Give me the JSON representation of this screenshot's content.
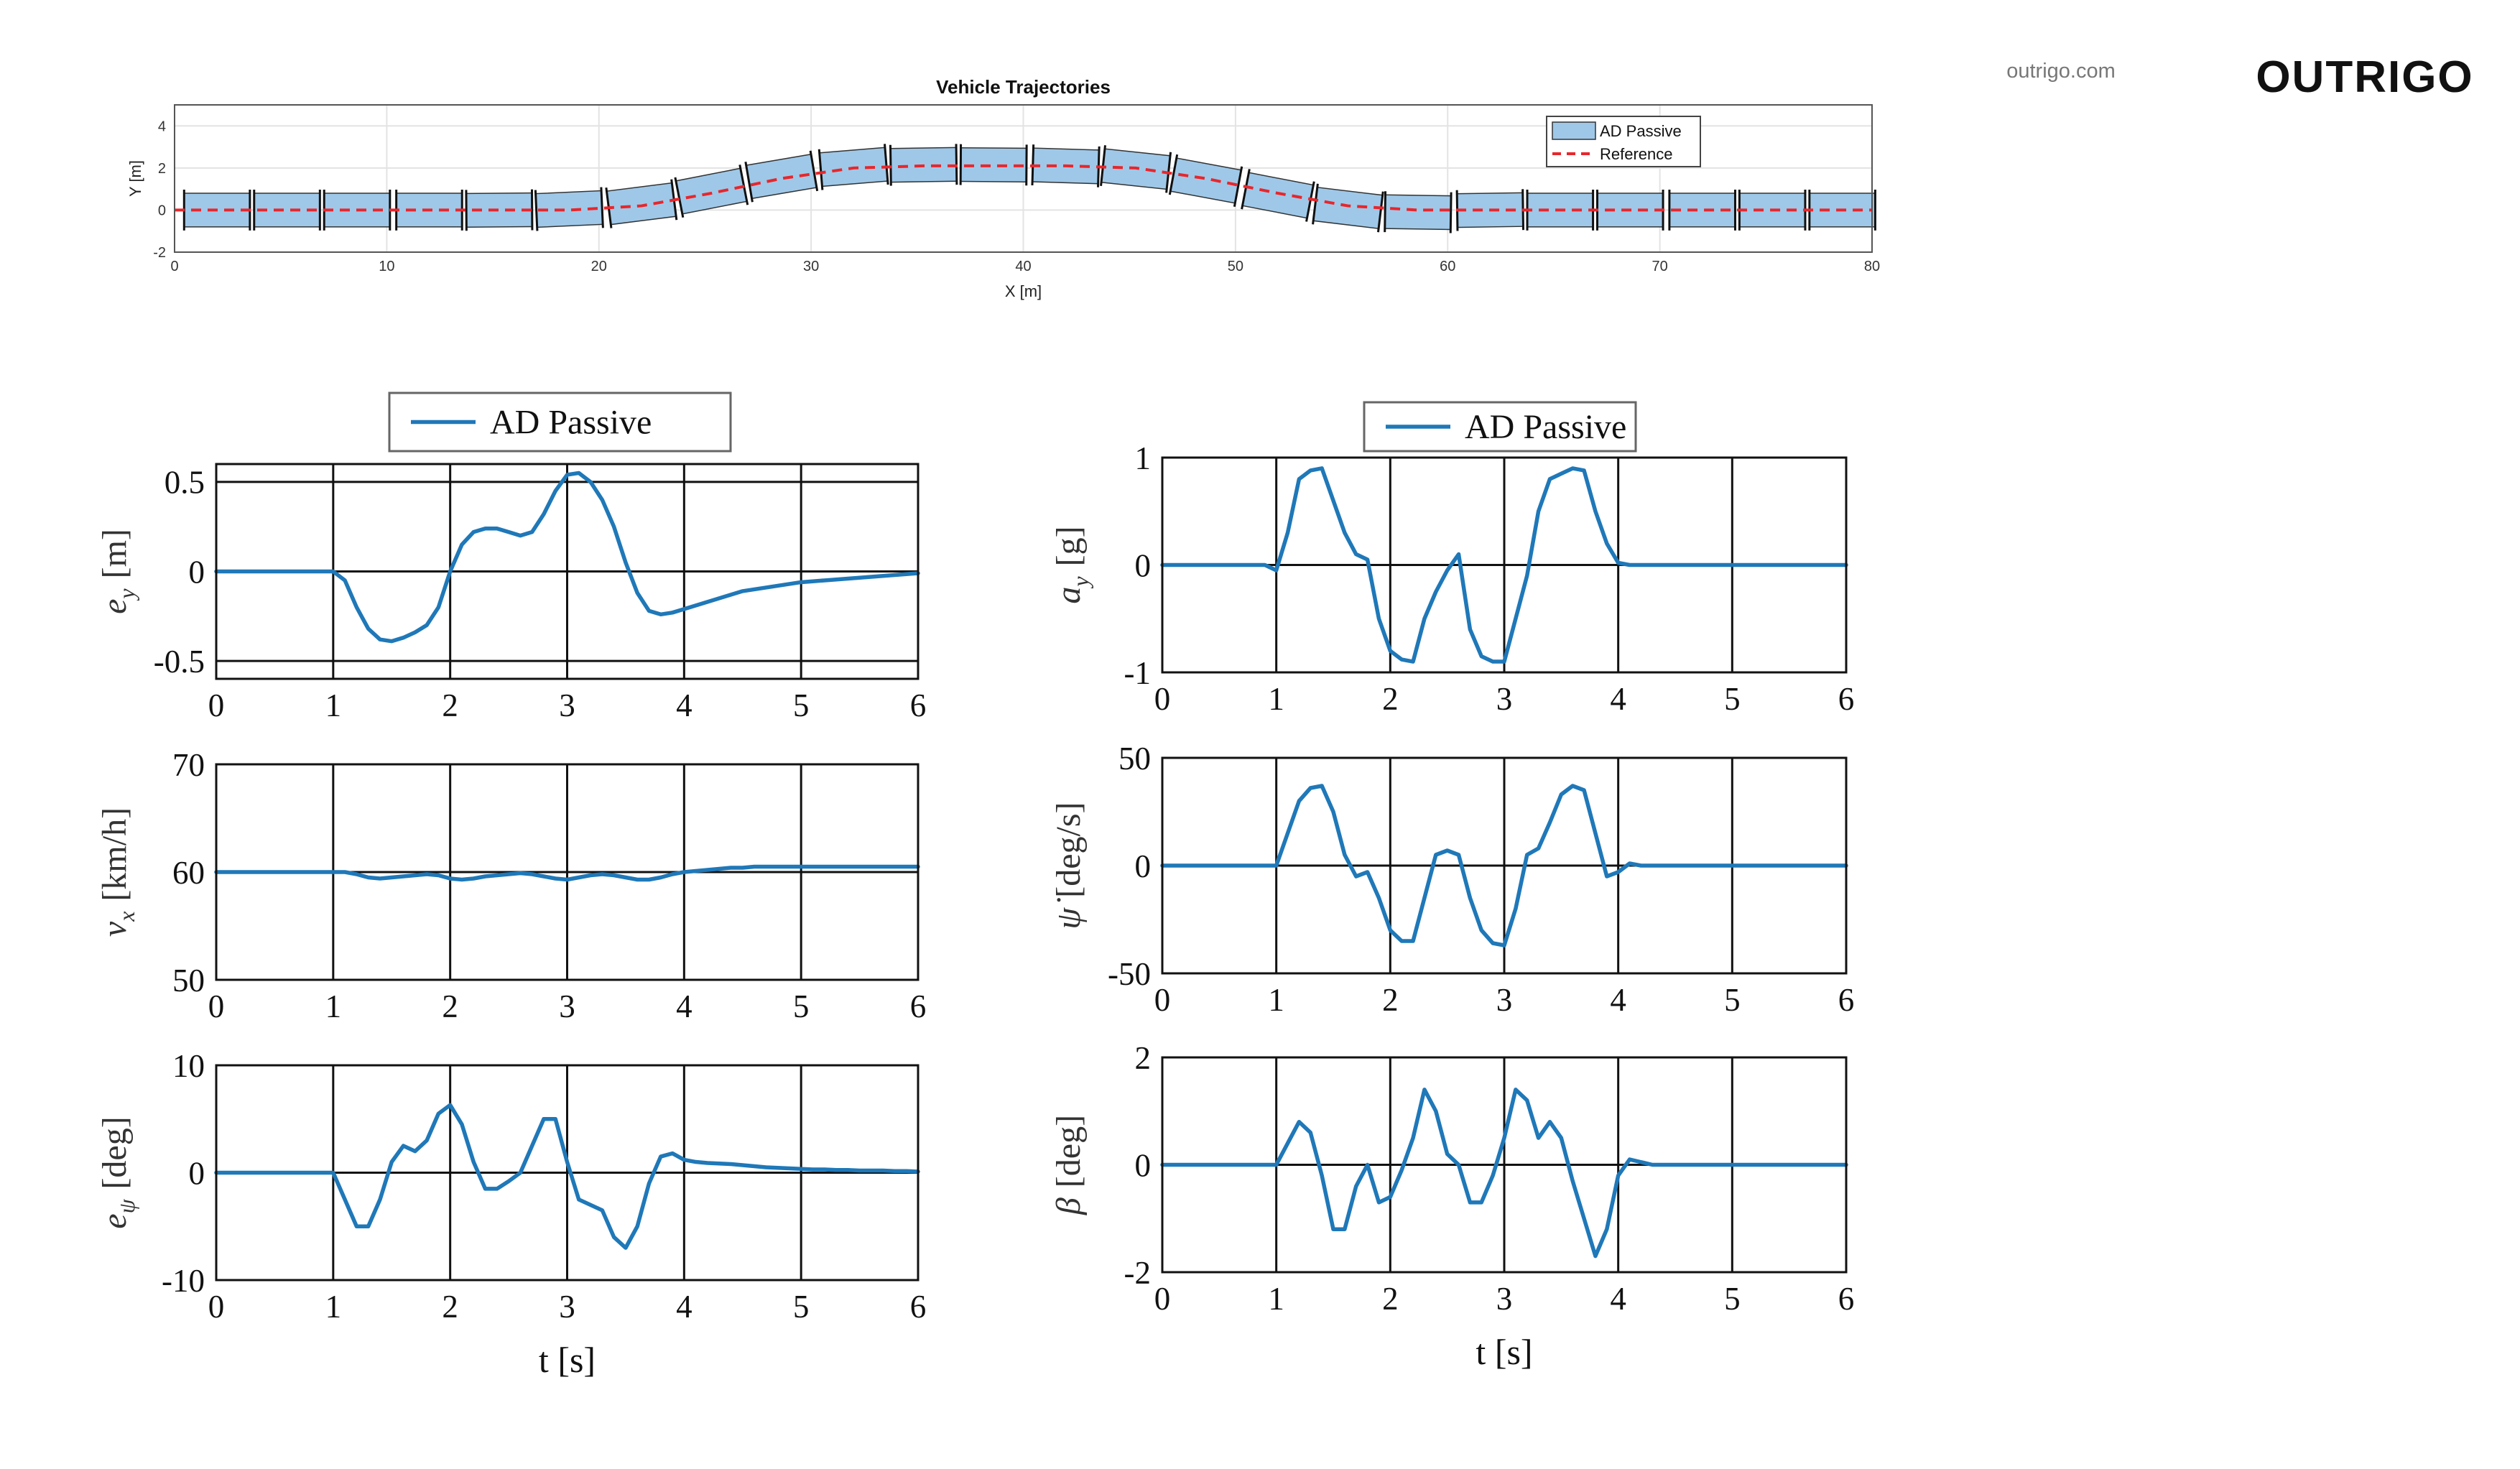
{
  "header": {
    "site": "outrigo.com",
    "logo": "OUTRIGO"
  },
  "chart_data": [
    {
      "type": "trajectory",
      "title": "Vehicle Trajectories",
      "x_label": "X [m]",
      "y_label": "Y [m]",
      "x": [
        0,
        2,
        5.3,
        8.6,
        12,
        15.3,
        18.6,
        22,
        25.3,
        28.6,
        32,
        35.3,
        38.6,
        42,
        45.3,
        48.6,
        52,
        55.3,
        58.6,
        62,
        65.3,
        68.6,
        72,
        75.3,
        78.6,
        80
      ],
      "xlim": [
        0,
        80
      ],
      "xticks": [
        0,
        10,
        20,
        30,
        40,
        50,
        60,
        70,
        80
      ],
      "ylim": [
        -2,
        5
      ],
      "yticks": [
        -2,
        0,
        2,
        4
      ],
      "grid": true,
      "legend": "upper right",
      "series": [
        {
          "name": "AD Passive",
          "color": "#9fc8e8",
          "values": [
            null,
            0,
            0,
            0,
            0,
            0,
            0.05,
            0.3,
            0.9,
            1.6,
            2.05,
            2.15,
            2.15,
            2.1,
            1.95,
            1.4,
            0.7,
            0.1,
            -0.1,
            0,
            0,
            0,
            0,
            0,
            0,
            null
          ]
        },
        {
          "name": "Reference",
          "color": "#e8262b",
          "dashed": true,
          "values": [
            0,
            0,
            0,
            0,
            0,
            0,
            0,
            0.2,
            0.8,
            1.5,
            2,
            2.1,
            2.1,
            2.1,
            2,
            1.5,
            0.8,
            0.2,
            0,
            0,
            0,
            0,
            0,
            0,
            0,
            0
          ]
        }
      ]
    },
    {
      "type": "line",
      "y_label": {
        "symbol": "e",
        "sub": "y",
        "unit": "[m]"
      },
      "x": [
        0,
        0.1,
        0.2,
        0.3,
        0.4,
        0.5,
        0.6,
        0.7,
        0.8,
        0.9,
        1,
        1.1,
        1.2,
        1.3,
        1.4,
        1.5,
        1.6,
        1.7,
        1.8,
        1.9,
        2,
        2.1,
        2.2,
        2.3,
        2.4,
        2.5,
        2.6,
        2.7,
        2.8,
        2.9,
        3,
        3.1,
        3.2,
        3.3,
        3.4,
        3.5,
        3.6,
        3.7,
        3.8,
        3.9,
        4,
        4.1,
        4.2,
        4.3,
        4.4,
        4.5,
        4.6,
        4.7,
        4.8,
        4.9,
        5,
        5.1,
        5.2,
        5.3,
        5.4,
        5.5,
        5.6,
        5.7,
        5.8,
        5.9,
        6
      ],
      "xlim": [
        0,
        6
      ],
      "xticks": [
        0,
        1,
        2,
        3,
        4,
        5,
        6
      ],
      "ylim": [
        -0.6,
        0.6
      ],
      "yticks": [
        -0.5,
        0,
        0.5
      ],
      "grid": true,
      "legend": "top outside",
      "series": [
        {
          "name": "AD Passive",
          "color": "#1f78b8",
          "values": [
            0,
            0,
            0,
            0,
            0,
            0,
            0,
            0,
            0,
            0,
            0,
            -0.05,
            -0.2,
            -0.32,
            -0.38,
            -0.39,
            -0.37,
            -0.34,
            -0.3,
            -0.2,
            0,
            0.15,
            0.22,
            0.24,
            0.24,
            0.22,
            0.2,
            0.22,
            0.32,
            0.45,
            0.54,
            0.55,
            0.5,
            0.4,
            0.25,
            0.05,
            -0.12,
            -0.22,
            -0.24,
            -0.23,
            -0.21,
            -0.19,
            -0.17,
            -0.15,
            -0.13,
            -0.11,
            -0.1,
            -0.09,
            -0.08,
            -0.07,
            -0.06,
            -0.055,
            -0.05,
            -0.045,
            -0.04,
            -0.035,
            -0.03,
            -0.025,
            -0.02,
            -0.015,
            -0.01
          ]
        }
      ]
    },
    {
      "type": "line",
      "y_label": {
        "symbol": "v",
        "sub": "x",
        "unit": "[km/h]"
      },
      "x": [
        0,
        0.1,
        0.2,
        0.3,
        0.4,
        0.5,
        0.6,
        0.7,
        0.8,
        0.9,
        1,
        1.1,
        1.2,
        1.3,
        1.4,
        1.5,
        1.6,
        1.7,
        1.8,
        1.9,
        2,
        2.1,
        2.2,
        2.3,
        2.4,
        2.5,
        2.6,
        2.7,
        2.8,
        2.9,
        3,
        3.1,
        3.2,
        3.3,
        3.4,
        3.5,
        3.6,
        3.7,
        3.8,
        3.9,
        4,
        4.1,
        4.2,
        4.3,
        4.4,
        4.5,
        4.6,
        4.7,
        4.8,
        4.9,
        5,
        5.1,
        5.2,
        5.3,
        5.4,
        5.5,
        5.6,
        5.7,
        5.8,
        5.9,
        6
      ],
      "xlim": [
        0,
        6
      ],
      "xticks": [
        0,
        1,
        2,
        3,
        4,
        5,
        6
      ],
      "ylim": [
        50,
        70
      ],
      "yticks": [
        50,
        60,
        70
      ],
      "grid": true,
      "series": [
        {
          "color": "#1f78b8",
          "values": [
            60,
            60,
            60,
            60,
            60,
            60,
            60,
            60,
            60,
            60,
            60,
            60,
            59.8,
            59.5,
            59.4,
            59.5,
            59.6,
            59.7,
            59.8,
            59.7,
            59.4,
            59.3,
            59.4,
            59.6,
            59.7,
            59.8,
            59.9,
            59.8,
            59.6,
            59.4,
            59.3,
            59.5,
            59.7,
            59.8,
            59.7,
            59.5,
            59.3,
            59.3,
            59.5,
            59.8,
            60,
            60.1,
            60.2,
            60.3,
            60.4,
            60.4,
            60.5,
            60.5,
            60.5,
            60.5,
            60.5,
            60.5,
            60.5,
            60.5,
            60.5,
            60.5,
            60.5,
            60.5,
            60.5,
            60.5,
            60.5
          ]
        }
      ]
    },
    {
      "type": "line",
      "y_label": {
        "symbol": "e",
        "sub": "ψ",
        "unit": "[deg]"
      },
      "x_label": "t [s]",
      "x": [
        0,
        0.1,
        0.2,
        0.3,
        0.4,
        0.5,
        0.6,
        0.7,
        0.8,
        0.9,
        1,
        1.1,
        1.2,
        1.3,
        1.4,
        1.5,
        1.6,
        1.7,
        1.8,
        1.9,
        2,
        2.1,
        2.2,
        2.3,
        2.4,
        2.5,
        2.6,
        2.7,
        2.8,
        2.9,
        3,
        3.1,
        3.2,
        3.3,
        3.4,
        3.5,
        3.6,
        3.7,
        3.8,
        3.9,
        4,
        4.1,
        4.2,
        4.3,
        4.4,
        4.5,
        4.6,
        4.7,
        4.8,
        4.9,
        5,
        5.1,
        5.2,
        5.3,
        5.4,
        5.5,
        5.6,
        5.7,
        5.8,
        5.9,
        6
      ],
      "xlim": [
        0,
        6
      ],
      "xticks": [
        0,
        1,
        2,
        3,
        4,
        5,
        6
      ],
      "ylim": [
        -10,
        10
      ],
      "yticks": [
        -10,
        0,
        10
      ],
      "grid": true,
      "series": [
        {
          "color": "#1f78b8",
          "values": [
            0,
            0,
            0,
            0,
            0,
            0,
            0,
            0,
            0,
            0,
            0,
            -2.5,
            -5,
            -5,
            -2.5,
            1,
            2.5,
            2,
            3,
            5.5,
            6.3,
            4.5,
            1,
            -1.5,
            -1.5,
            -0.8,
            0,
            2.5,
            5,
            5,
            1,
            -2.5,
            -3,
            -3.5,
            -6,
            -7,
            -5,
            -1,
            1.5,
            1.8,
            1.2,
            1,
            0.9,
            0.85,
            0.8,
            0.7,
            0.6,
            0.5,
            0.45,
            0.4,
            0.35,
            0.3,
            0.3,
            0.25,
            0.25,
            0.2,
            0.2,
            0.2,
            0.15,
            0.15,
            0.1
          ]
        }
      ]
    },
    {
      "type": "line",
      "y_label": {
        "symbol": "a",
        "sub": "y",
        "unit": "[g]"
      },
      "x": [
        0,
        0.1,
        0.2,
        0.3,
        0.4,
        0.5,
        0.6,
        0.7,
        0.8,
        0.9,
        1,
        1.1,
        1.2,
        1.3,
        1.4,
        1.5,
        1.6,
        1.7,
        1.8,
        1.9,
        2,
        2.1,
        2.2,
        2.3,
        2.4,
        2.5,
        2.6,
        2.7,
        2.8,
        2.9,
        3,
        3.1,
        3.2,
        3.3,
        3.4,
        3.5,
        3.6,
        3.7,
        3.8,
        3.9,
        4,
        4.1,
        4.2,
        4.3,
        4.4,
        4.5,
        4.6,
        4.7,
        4.8,
        4.9,
        5,
        5.1,
        5.2,
        5.3,
        5.4,
        5.5,
        5.6,
        5.7,
        5.8,
        5.9,
        6
      ],
      "xlim": [
        0,
        6
      ],
      "xticks": [
        0,
        1,
        2,
        3,
        4,
        5,
        6
      ],
      "ylim": [
        -1,
        1
      ],
      "yticks": [
        -1,
        0,
        1
      ],
      "grid": true,
      "legend": "top outside",
      "series": [
        {
          "name": "AD Passive",
          "color": "#1f78b8",
          "values": [
            0,
            0,
            0,
            0,
            0,
            0,
            0,
            0,
            0,
            0,
            -0.05,
            0.3,
            0.8,
            0.88,
            0.9,
            0.6,
            0.3,
            0.1,
            0.05,
            -0.5,
            -0.8,
            -0.88,
            -0.9,
            -0.5,
            -0.25,
            -0.05,
            0.1,
            -0.6,
            -0.85,
            -0.9,
            -0.9,
            -0.5,
            -0.1,
            0.5,
            0.8,
            0.85,
            0.9,
            0.88,
            0.5,
            0.2,
            0.02,
            0,
            0,
            0,
            0,
            0,
            0,
            0,
            0,
            0,
            0,
            0,
            0,
            0,
            0,
            0,
            0,
            0,
            0,
            0,
            0
          ]
        }
      ]
    },
    {
      "type": "line",
      "y_label": {
        "symbol": "ψ̇",
        "unit": "[deg/s]"
      },
      "x": [
        0,
        0.1,
        0.2,
        0.3,
        0.4,
        0.5,
        0.6,
        0.7,
        0.8,
        0.9,
        1,
        1.1,
        1.2,
        1.3,
        1.4,
        1.5,
        1.6,
        1.7,
        1.8,
        1.9,
        2,
        2.1,
        2.2,
        2.3,
        2.4,
        2.5,
        2.6,
        2.7,
        2.8,
        2.9,
        3,
        3.1,
        3.2,
        3.3,
        3.4,
        3.5,
        3.6,
        3.7,
        3.8,
        3.9,
        4,
        4.1,
        4.2,
        4.3,
        4.4,
        4.5,
        4.6,
        4.7,
        4.8,
        4.9,
        5,
        5.1,
        5.2,
        5.3,
        5.4,
        5.5,
        5.6,
        5.7,
        5.8,
        5.9,
        6
      ],
      "xlim": [
        0,
        6
      ],
      "xticks": [
        0,
        1,
        2,
        3,
        4,
        5,
        6
      ],
      "ylim": [
        -50,
        50
      ],
      "yticks": [
        -50,
        0,
        50
      ],
      "grid": true,
      "series": [
        {
          "color": "#1f78b8",
          "values": [
            0,
            0,
            0,
            0,
            0,
            0,
            0,
            0,
            0,
            0,
            0,
            15,
            30,
            36,
            37,
            25,
            5,
            -5,
            -3,
            -15,
            -30,
            -35,
            -35,
            -15,
            5,
            7,
            5,
            -15,
            -30,
            -36,
            -37,
            -20,
            5,
            8,
            20,
            33,
            37,
            35,
            15,
            -5,
            -3,
            1,
            0,
            0,
            0,
            0,
            0,
            0,
            0,
            0,
            0,
            0,
            0,
            0,
            0,
            0,
            0,
            0,
            0,
            0,
            0
          ]
        }
      ]
    },
    {
      "type": "line",
      "y_label": {
        "symbol": "β",
        "unit": "[deg]"
      },
      "x_label": "t [s]",
      "x": [
        0,
        0.1,
        0.2,
        0.3,
        0.4,
        0.5,
        0.6,
        0.7,
        0.8,
        0.9,
        1,
        1.1,
        1.2,
        1.3,
        1.4,
        1.5,
        1.6,
        1.7,
        1.8,
        1.9,
        2,
        2.1,
        2.2,
        2.3,
        2.4,
        2.5,
        2.6,
        2.7,
        2.8,
        2.9,
        3,
        3.1,
        3.2,
        3.3,
        3.4,
        3.5,
        3.6,
        3.7,
        3.8,
        3.9,
        4,
        4.1,
        4.2,
        4.3,
        4.4,
        4.5,
        4.6,
        4.7,
        4.8,
        4.9,
        5,
        5.1,
        5.2,
        5.3,
        5.4,
        5.5,
        5.6,
        5.7,
        5.8,
        5.9,
        6
      ],
      "xlim": [
        0,
        6
      ],
      "xticks": [
        0,
        1,
        2,
        3,
        4,
        5,
        6
      ],
      "ylim": [
        -2,
        2
      ],
      "yticks": [
        -2,
        0,
        2
      ],
      "grid": true,
      "series": [
        {
          "color": "#1f78b8",
          "values": [
            0,
            0,
            0,
            0,
            0,
            0,
            0,
            0,
            0,
            0,
            0,
            0.4,
            0.8,
            0.6,
            -0.2,
            -1.2,
            -1.2,
            -0.4,
            0,
            -0.7,
            -0.6,
            -0.1,
            0.5,
            1.4,
            1,
            0.2,
            0,
            -0.7,
            -0.7,
            -0.2,
            0.5,
            1.4,
            1.2,
            0.5,
            0.8,
            0.5,
            -0.3,
            -1,
            -1.7,
            -1.2,
            -0.2,
            0.1,
            0.05,
            0,
            0,
            0,
            0,
            0,
            0,
            0,
            0,
            0,
            0,
            0,
            0,
            0,
            0,
            0,
            0,
            0,
            0
          ]
        }
      ]
    }
  ]
}
